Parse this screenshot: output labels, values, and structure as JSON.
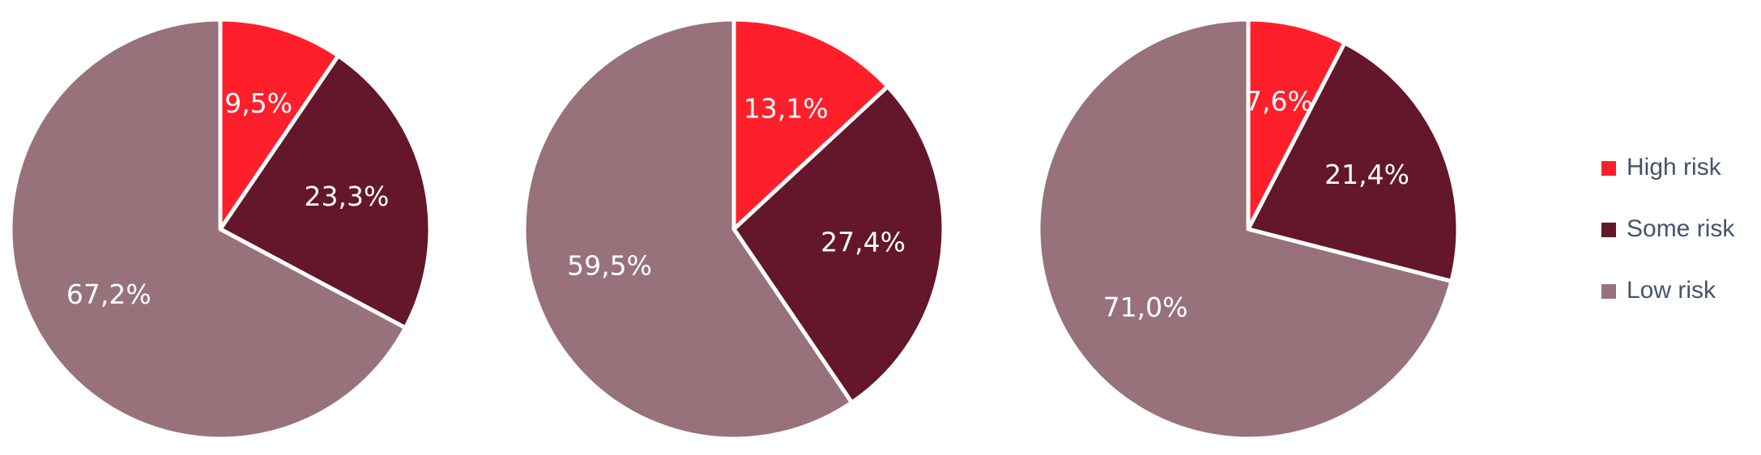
{
  "chart_data": [
    {
      "type": "pie",
      "categories": [
        "High risk",
        "Some risk",
        "Low risk"
      ],
      "values": [
        9.5,
        23.3,
        67.2
      ],
      "value_labels": [
        "9,5%",
        "23,3%",
        "67,2%"
      ],
      "colors": [
        "#ff1f2b",
        "#64172a",
        "#97727a"
      ]
    },
    {
      "type": "pie",
      "categories": [
        "High risk",
        "Some risk",
        "Low risk"
      ],
      "values": [
        13.1,
        27.4,
        59.5
      ],
      "value_labels": [
        "13,1%",
        "27,4%",
        "59,5%"
      ],
      "colors": [
        "#ff1f2b",
        "#64172a",
        "#97727a"
      ]
    },
    {
      "type": "pie",
      "categories": [
        "High risk",
        "Some risk",
        "Low risk"
      ],
      "values": [
        7.6,
        21.4,
        71.0
      ],
      "value_labels": [
        "7,6%",
        "21,4%",
        "71,0%"
      ],
      "colors": [
        "#ff1f2b",
        "#64172a",
        "#97727a"
      ]
    }
  ]
}
